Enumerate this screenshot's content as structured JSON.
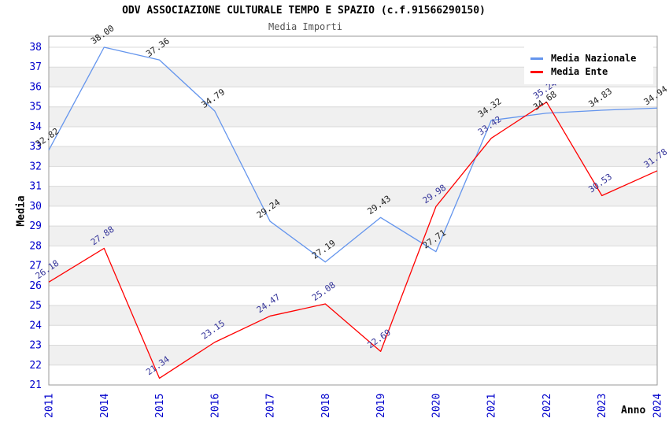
{
  "header": {
    "title": "ODV ASSOCIAZIONE CULTURALE TEMPO E SPAZIO (c.f.91566290150)",
    "subtitle": "Media Importi"
  },
  "chart_data": {
    "type": "line",
    "title": "ODV ASSOCIAZIONE CULTURALE TEMPO E SPAZIO (c.f.91566290150)",
    "subtitle": "Media Importi",
    "xlabel": "Anno",
    "ylabel": "Media",
    "categories": [
      "2011",
      "2014",
      "2015",
      "2016",
      "2017",
      "2018",
      "2019",
      "2020",
      "2021",
      "2022",
      "2023",
      "2024"
    ],
    "series": [
      {
        "name": "Media Nazionale",
        "color": "#6495ED",
        "label_color": "#222222",
        "values": [
          32.82,
          38.0,
          37.36,
          34.79,
          29.24,
          27.19,
          29.43,
          27.71,
          34.32,
          34.68,
          34.83,
          34.94
        ]
      },
      {
        "name": "Media Ente",
        "color": "#FF0000",
        "label_color": "#333399",
        "values": [
          26.18,
          27.88,
          21.34,
          23.15,
          24.47,
          25.08,
          22.69,
          29.98,
          33.42,
          35.24,
          30.53,
          31.78
        ]
      }
    ],
    "ylim": [
      21,
      38.55
    ],
    "yticks": [
      21,
      22,
      23,
      24,
      25,
      26,
      27,
      28,
      29,
      30,
      31,
      32,
      33,
      34,
      35,
      36,
      37,
      38
    ],
    "grid": "horizontal",
    "band_colors": [
      "#ffffff",
      "#f0f0f0"
    ],
    "grid_color": "#d9d9d9",
    "border_color": "#999999",
    "tick_color": "#0000cc",
    "legend_position": "top-right"
  }
}
